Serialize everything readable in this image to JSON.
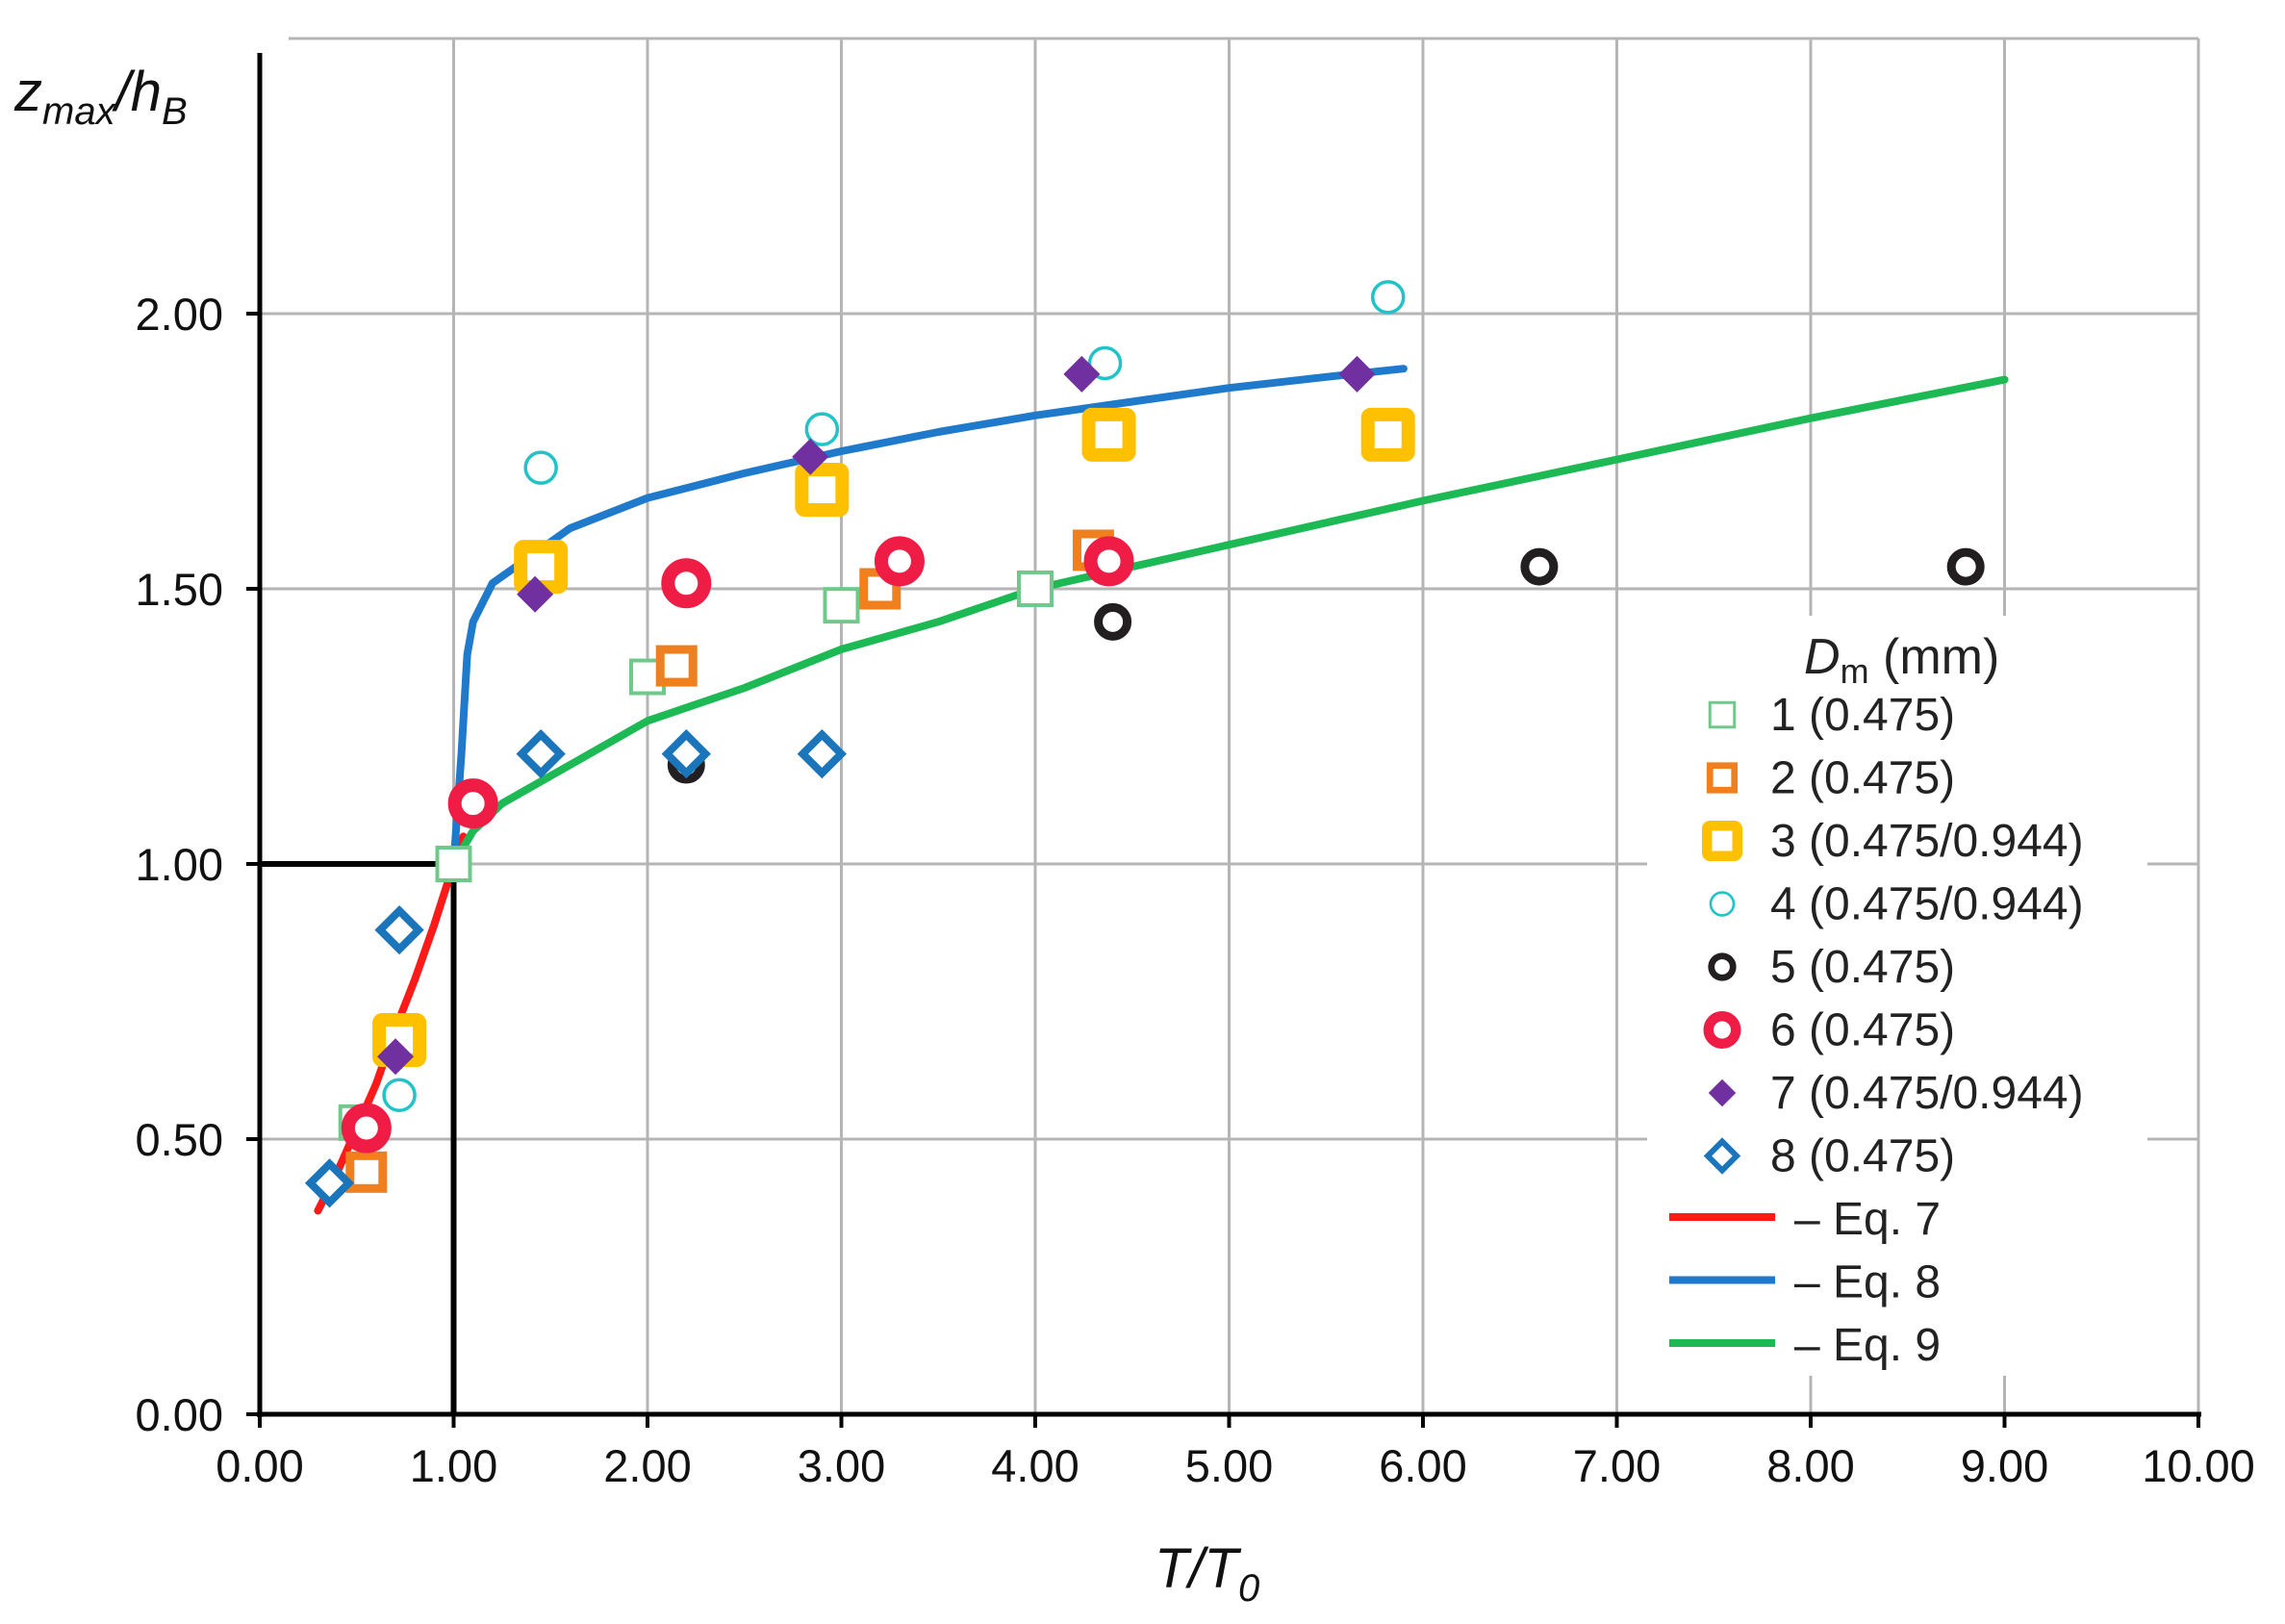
{
  "chart_data": {
    "type": "scatter",
    "title": "",
    "xlabel": {
      "main": "T/T",
      "sub": "0"
    },
    "ylabel": {
      "main": "z",
      "sub": "max",
      "rest": "/h",
      "sub2": "B"
    },
    "xlim": [
      0,
      10
    ],
    "ylim": [
      0,
      2.5
    ],
    "grid": true,
    "x_ticks": [
      0,
      1,
      2,
      3,
      4,
      5,
      6,
      7,
      8,
      9,
      10
    ],
    "x_tick_labels": [
      "0.00",
      "1.00",
      "2.00",
      "3.00",
      "4.00",
      "5.00",
      "6.00",
      "7.00",
      "8.00",
      "9.00",
      "10.00"
    ],
    "y_ticks": [
      0,
      0.5,
      1.0,
      1.5,
      2.0
    ],
    "y_tick_labels": [
      "0.00",
      "0.50",
      "1.00",
      "1.50",
      "2.00"
    ],
    "reference_lines": [
      {
        "name": "threshold-horizontal",
        "points": [
          [
            0,
            1.0
          ],
          [
            1,
            1.0
          ]
        ],
        "color": "#000000"
      },
      {
        "name": "threshold-vertical",
        "points": [
          [
            1,
            0
          ],
          [
            1,
            1.0
          ]
        ],
        "color": "#000000"
      }
    ],
    "legend_position": "right",
    "legend_title": {
      "main": "D",
      "sub": "m",
      "rest": " (mm)"
    },
    "series": [
      {
        "name": "1 (0.475)",
        "marker": "square-open-thin",
        "color": "#70c98a",
        "points": [
          [
            0.5,
            0.53
          ],
          [
            1.0,
            1.0
          ],
          [
            2.0,
            1.34
          ],
          [
            3.0,
            1.47
          ],
          [
            4.0,
            1.5
          ]
        ]
      },
      {
        "name": "2 (0.475)",
        "marker": "square-open",
        "color": "#f07f1d",
        "points": [
          [
            0.55,
            0.44
          ],
          [
            2.15,
            1.36
          ],
          [
            3.2,
            1.5
          ],
          [
            4.3,
            1.57
          ]
        ]
      },
      {
        "name": "3 (0.475/0.944)",
        "marker": "square-open-thick",
        "color": "#ffc000",
        "points": [
          [
            0.72,
            0.68
          ],
          [
            1.45,
            1.54
          ],
          [
            2.9,
            1.68
          ],
          [
            4.38,
            1.78
          ],
          [
            5.82,
            1.78
          ]
        ]
      },
      {
        "name": "4 (0.475/0.944)",
        "marker": "circle-open-thin",
        "color": "#21c3c7",
        "points": [
          [
            0.72,
            0.58
          ],
          [
            1.45,
            1.72
          ],
          [
            2.9,
            1.79
          ],
          [
            4.36,
            1.91
          ],
          [
            5.82,
            2.03
          ]
        ]
      },
      {
        "name": "5 (0.475)",
        "marker": "circle-open",
        "color": "#231f20",
        "points": [
          [
            2.2,
            1.18
          ],
          [
            4.4,
            1.44
          ],
          [
            6.6,
            1.54
          ],
          [
            8.8,
            1.54
          ]
        ]
      },
      {
        "name": "6 (0.475)",
        "marker": "circle-open-thick",
        "color": "#ef1c45",
        "points": [
          [
            0.55,
            0.52
          ],
          [
            1.1,
            1.11
          ],
          [
            2.2,
            1.51
          ],
          [
            3.3,
            1.55
          ],
          [
            4.38,
            1.55
          ]
        ]
      },
      {
        "name": "7 (0.475/0.944)",
        "marker": "diamond-filled",
        "color": "#7030a0",
        "points": [
          [
            0.7,
            0.65
          ],
          [
            1.42,
            1.49
          ],
          [
            2.84,
            1.74
          ],
          [
            4.24,
            1.89
          ],
          [
            5.66,
            1.89
          ]
        ]
      },
      {
        "name": "8 (0.475)",
        "marker": "diamond-open",
        "color": "#1b75bb",
        "points": [
          [
            0.36,
            0.42
          ],
          [
            0.72,
            0.88
          ],
          [
            1.45,
            1.2
          ],
          [
            2.2,
            1.2
          ],
          [
            2.9,
            1.2
          ]
        ]
      }
    ],
    "lines": [
      {
        "name": "– Eq. 7",
        "color": "#ff1a1a",
        "points": [
          [
            0.3,
            0.37
          ],
          [
            0.4,
            0.44
          ],
          [
            0.5,
            0.52
          ],
          [
            0.6,
            0.6
          ],
          [
            0.7,
            0.7
          ],
          [
            0.8,
            0.79
          ],
          [
            0.9,
            0.89
          ],
          [
            1.0,
            1.0
          ],
          [
            1.05,
            1.05
          ]
        ]
      },
      {
        "name": "– Eq. 8",
        "color": "#1f7acc",
        "points": [
          [
            1.0,
            1.0
          ],
          [
            1.04,
            1.2
          ],
          [
            1.07,
            1.38
          ],
          [
            1.1,
            1.44
          ],
          [
            1.2,
            1.51
          ],
          [
            1.4,
            1.56
          ],
          [
            1.6,
            1.61
          ],
          [
            2.0,
            1.665
          ],
          [
            2.5,
            1.71
          ],
          [
            3.0,
            1.75
          ],
          [
            3.5,
            1.785
          ],
          [
            4.0,
            1.815
          ],
          [
            4.5,
            1.84
          ],
          [
            5.0,
            1.865
          ],
          [
            5.5,
            1.885
          ],
          [
            5.9,
            1.9
          ]
        ]
      },
      {
        "name": "– Eq. 9",
        "color": "#1db954",
        "points": [
          [
            1.0,
            1.0
          ],
          [
            1.1,
            1.06
          ],
          [
            1.25,
            1.11
          ],
          [
            1.5,
            1.16
          ],
          [
            2.0,
            1.26
          ],
          [
            2.5,
            1.32
          ],
          [
            3.0,
            1.39
          ],
          [
            3.5,
            1.44
          ],
          [
            4.0,
            1.5
          ],
          [
            5.0,
            1.58
          ],
          [
            6.0,
            1.66
          ],
          [
            7.0,
            1.735
          ],
          [
            8.0,
            1.81
          ],
          [
            9.0,
            1.88
          ]
        ]
      }
    ]
  }
}
